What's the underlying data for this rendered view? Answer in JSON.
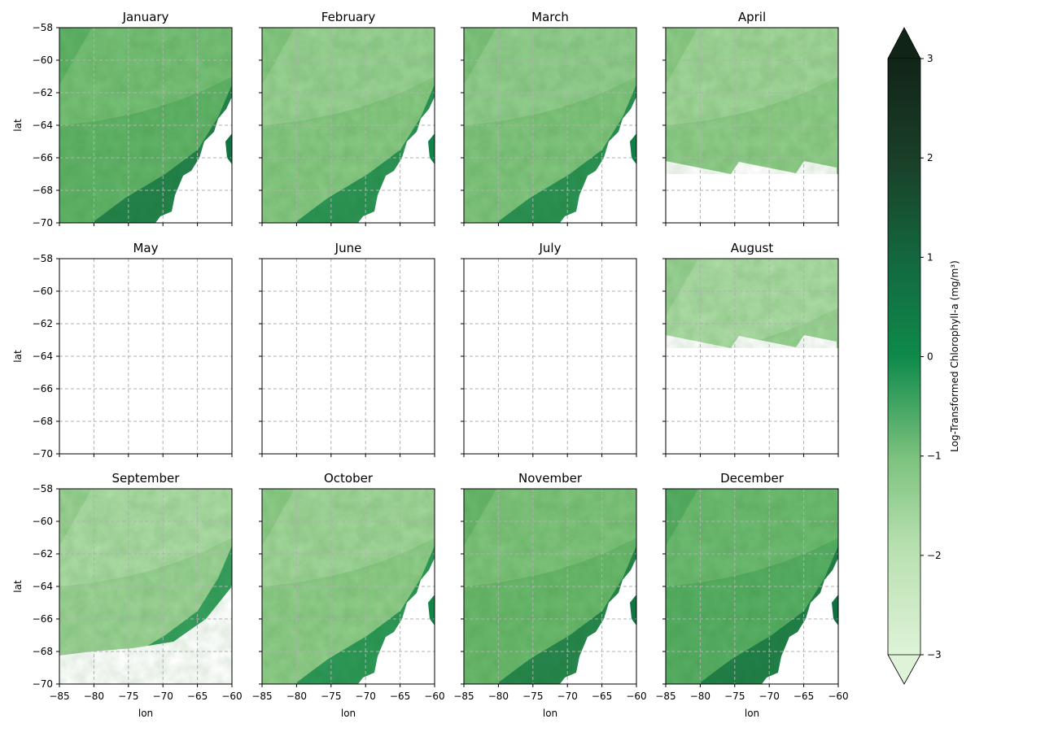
{
  "chart_data": {
    "type": "heatmap",
    "title": "",
    "xlabel": "lon",
    "ylabel": "lat",
    "xlim": [
      -85,
      -60
    ],
    "ylim": [
      -70,
      -58
    ],
    "x_ticks": [
      -85,
      -80,
      -75,
      -70,
      -65,
      -60
    ],
    "y_ticks": [
      -58,
      -60,
      -62,
      -64,
      -66,
      -68,
      -70
    ],
    "grid": true,
    "colorbar": {
      "label": "Log-Transformed Chlorophyll-a (mg/m³)",
      "range": [
        -3,
        3
      ],
      "ticks": [
        3,
        2,
        1,
        0,
        -1,
        -2,
        -3
      ],
      "extend": "both",
      "colors": [
        "#f7fcf5",
        "#e5f5e0",
        "#c7e9c0",
        "#a1d99b",
        "#74c476",
        "#41ab5d",
        "#238b45",
        "#006d2c",
        "#00441b",
        "#0f2a17"
      ]
    },
    "panels": [
      {
        "month": "January",
        "coverage": "full",
        "mean_value": -0.9
      },
      {
        "month": "February",
        "coverage": "full",
        "mean_value": -1.4
      },
      {
        "month": "March",
        "coverage": "full",
        "mean_value": -1.3
      },
      {
        "month": "April",
        "coverage": "partial",
        "mean_value": -1.5
      },
      {
        "month": "May",
        "coverage": "none"
      },
      {
        "month": "June",
        "coverage": "none"
      },
      {
        "month": "July",
        "coverage": "none"
      },
      {
        "month": "August",
        "coverage": "partial",
        "mean_value": -1.7
      },
      {
        "month": "September",
        "coverage": "partial",
        "mean_value": -1.7
      },
      {
        "month": "October",
        "coverage": "full",
        "mean_value": -1.5
      },
      {
        "month": "November",
        "coverage": "full",
        "mean_value": -1.0
      },
      {
        "month": "December",
        "coverage": "full",
        "mean_value": -0.8
      }
    ]
  }
}
